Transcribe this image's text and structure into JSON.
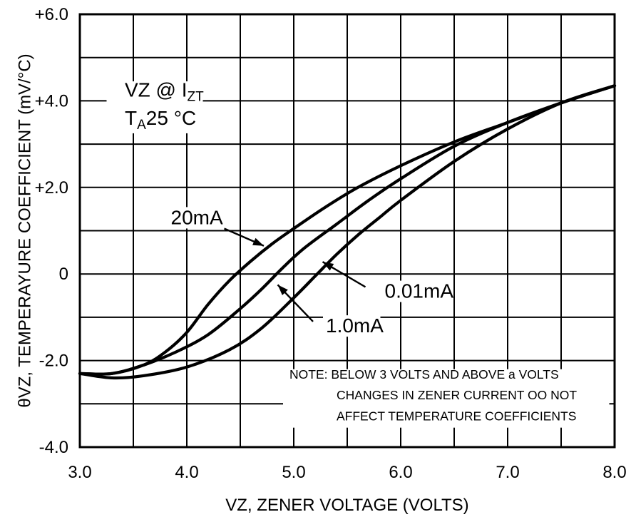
{
  "chart_data": {
    "type": "line",
    "xlabel": "VZ, ZENER VOLTAGE (VOLTS)",
    "ylabel": "θVZ, TEMPERAYURE COEFFICIENT (mV/°C)",
    "xlim": [
      3.0,
      8.0
    ],
    "ylim": [
      -4.0,
      6.0
    ],
    "grid": true,
    "x_ticks": [
      {
        "value": 3.0,
        "label": "3.0"
      },
      {
        "value": 4.0,
        "label": "4.0"
      },
      {
        "value": 5.0,
        "label": "5.0"
      },
      {
        "value": 6.0,
        "label": "6.0"
      },
      {
        "value": 7.0,
        "label": "7.0"
      },
      {
        "value": 8.0,
        "label": "8.0"
      }
    ],
    "y_ticks": [
      {
        "value": 6.0,
        "label": "+6.0"
      },
      {
        "value": 4.0,
        "label": "+4.0"
      },
      {
        "value": 2.0,
        "label": "+2.0"
      },
      {
        "value": 0.0,
        "label": "0"
      },
      {
        "value": -2.0,
        "label": "-2.0"
      },
      {
        "value": -4.0,
        "label": "-4.0"
      }
    ],
    "conditions": {
      "line1_main": "VZ @ I",
      "line1_sub": "ZT",
      "line2_main": "T",
      "line2_sub": "A",
      "line2_rest": "25 °C"
    },
    "note": [
      "NOTE: BELOW 3 VOLTS AND ABOVE a VOLTS",
      "CHANGES IN ZENER CURRENT OO NOT",
      "AFFECT TEMPERATURE COEFFICIENTS"
    ],
    "series": [
      {
        "name": "20mA",
        "x": [
          3.0,
          3.3,
          3.6,
          3.8,
          4.0,
          4.2,
          4.4,
          4.6,
          4.8,
          5.0,
          5.3,
          5.6,
          6.0,
          6.5,
          7.0,
          7.5,
          8.0
        ],
        "y": [
          -2.3,
          -2.3,
          -2.1,
          -1.8,
          -1.35,
          -0.7,
          -0.15,
          0.3,
          0.7,
          1.05,
          1.55,
          2.0,
          2.5,
          3.05,
          3.5,
          3.95,
          4.35
        ]
      },
      {
        "name": "1.0mA",
        "x": [
          3.0,
          3.3,
          3.6,
          3.9,
          4.2,
          4.5,
          4.7,
          4.9,
          5.1,
          5.4,
          5.7,
          6.0,
          6.5,
          7.0,
          7.5,
          8.0
        ],
        "y": [
          -2.3,
          -2.3,
          -2.1,
          -1.8,
          -1.4,
          -0.8,
          -0.35,
          0.15,
          0.6,
          1.15,
          1.7,
          2.2,
          2.95,
          3.5,
          3.95,
          4.35
        ]
      },
      {
        "name": "0.01mA",
        "x": [
          3.0,
          3.3,
          3.6,
          4.0,
          4.4,
          4.7,
          5.0,
          5.2,
          5.4,
          5.6,
          5.8,
          6.0,
          6.5,
          7.0,
          7.5,
          8.0
        ],
        "y": [
          -2.3,
          -2.4,
          -2.35,
          -2.15,
          -1.75,
          -1.25,
          -0.55,
          -0.05,
          0.45,
          0.9,
          1.3,
          1.7,
          2.6,
          3.35,
          3.95,
          4.35
        ]
      }
    ],
    "annotations": [
      {
        "text": "20mA",
        "series": "20mA",
        "label_anchor": [
          3.85,
          1.15
        ],
        "arrow_from": [
          4.35,
          1.05
        ],
        "arrow_to": [
          4.72,
          0.65
        ]
      },
      {
        "text": "0.01mA",
        "series": "0.01mA",
        "label_anchor": [
          5.85,
          -0.55
        ],
        "arrow_from": [
          5.67,
          -0.3
        ],
        "arrow_to": [
          5.27,
          0.28
        ]
      },
      {
        "text": "1.0mA",
        "series": "1.0mA",
        "label_anchor": [
          5.3,
          -1.35
        ],
        "arrow_from": [
          5.18,
          -1.1
        ],
        "arrow_to": [
          4.85,
          -0.25
        ]
      }
    ]
  }
}
